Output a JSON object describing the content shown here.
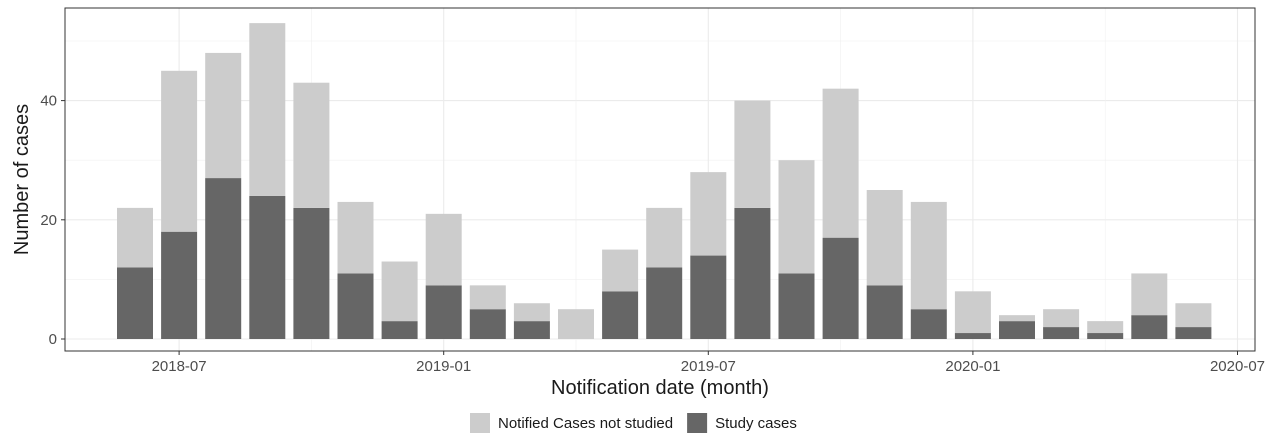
{
  "chart_data": {
    "type": "bar",
    "stacked": true,
    "xlabel": "Notification date (month)",
    "ylabel": "Number of cases",
    "ylim": [
      0,
      55
    ],
    "y_ticks": [
      0,
      20,
      40
    ],
    "x_ticks": [
      "2018-07",
      "2019-01",
      "2019-07",
      "2020-01",
      "2020-07"
    ],
    "categories": [
      "2018-06",
      "2018-07",
      "2018-08",
      "2018-09",
      "2018-10",
      "2018-11",
      "2018-12",
      "2019-01",
      "2019-02",
      "2019-03",
      "2019-04",
      "2019-05",
      "2019-06",
      "2019-07",
      "2019-08",
      "2019-09",
      "2019-10",
      "2019-11",
      "2019-12",
      "2020-01",
      "2020-02",
      "2020-03",
      "2020-04",
      "2020-05",
      "2020-06"
    ],
    "series": [
      {
        "name": "Study cases",
        "color": "#666666",
        "values": [
          12,
          18,
          27,
          24,
          22,
          11,
          3,
          9,
          5,
          3,
          0,
          8,
          12,
          14,
          22,
          11,
          17,
          9,
          5,
          1,
          3,
          2,
          1,
          4,
          2
        ]
      },
      {
        "name": "Notified Cases not studied",
        "color": "#cccccc",
        "values": [
          10,
          27,
          21,
          29,
          21,
          12,
          10,
          12,
          4,
          3,
          5,
          7,
          10,
          14,
          18,
          19,
          25,
          16,
          18,
          7,
          1,
          3,
          2,
          7,
          4
        ]
      }
    ],
    "legend": {
      "position": "bottom",
      "entries": [
        "Notified Cases not studied",
        "Study cases"
      ]
    },
    "grid": true
  }
}
